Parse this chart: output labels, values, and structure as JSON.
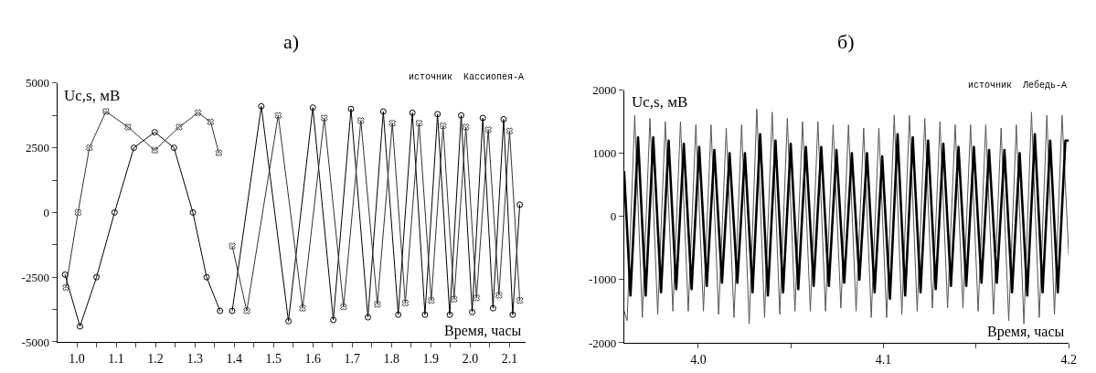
{
  "chart_data": [
    {
      "type": "line",
      "title": "а)",
      "xlabel": "Время, часы",
      "ylabel": "Uc,s, мВ",
      "annotations": [
        "источник  Кассиопея-А"
      ],
      "xlim": [
        0.95,
        2.14
      ],
      "ylim": [
        -5000,
        5000
      ],
      "xticks": [
        {
          "value": 1.0,
          "label": "1.0"
        },
        {
          "value": 1.05,
          "label": null
        },
        {
          "value": 1.1,
          "label": "1.1"
        },
        {
          "value": 1.15,
          "label": null
        },
        {
          "value": 1.2,
          "label": "1.2"
        },
        {
          "value": 1.25,
          "label": null
        },
        {
          "value": 1.3,
          "label": "1.3"
        },
        {
          "value": 1.35,
          "label": null
        },
        {
          "value": 1.4,
          "label": "1.4"
        },
        {
          "value": 1.45,
          "label": null
        },
        {
          "value": 1.5,
          "label": "1.5"
        },
        {
          "value": 1.55,
          "label": null
        },
        {
          "value": 1.6,
          "label": "1.6"
        },
        {
          "value": 1.65,
          "label": null
        },
        {
          "value": 1.7,
          "label": "1.7"
        },
        {
          "value": 1.75,
          "label": null
        },
        {
          "value": 1.8,
          "label": "1.8"
        },
        {
          "value": 1.85,
          "label": null
        },
        {
          "value": 1.9,
          "label": "1.9"
        },
        {
          "value": 1.95,
          "label": null
        },
        {
          "value": 2.0,
          "label": "2.0"
        },
        {
          "value": 2.05,
          "label": null
        },
        {
          "value": 2.1,
          "label": "2.1"
        }
      ],
      "yticks": [
        -5000,
        {
          "value": -3750,
          "label": null
        },
        -2500,
        {
          "value": -1250,
          "label": null
        },
        0,
        {
          "value": 1250,
          "label": null
        },
        2500,
        {
          "value": 3750,
          "label": null
        },
        5000
      ],
      "series": [
        {
          "color": "#000000",
          "marker": "circle",
          "x": [
            0.97,
            1.008,
            1.05,
            1.096,
            1.145,
            1.198,
            1.247,
            1.295,
            1.33,
            1.364,
            1.38,
            1.395,
            1.469,
            1.538,
            1.6,
            1.652,
            1.697,
            1.74,
            1.779,
            1.817,
            1.853,
            1.885,
            1.917,
            1.948,
            1.977,
            2.005,
            2.032,
            2.058,
            2.085,
            2.108,
            2.126
          ],
          "values": [
            -2400,
            -4400,
            -2500,
            0,
            2500,
            3100,
            2500,
            0,
            -2500,
            -3800,
            null,
            -3800,
            4100,
            -4200,
            4050,
            -4150,
            4000,
            -4050,
            3900,
            -3950,
            3850,
            -3950,
            3800,
            -3950,
            3750,
            -3850,
            3650,
            -3700,
            3600,
            -3950,
            300
          ]
        },
        {
          "color": "#333333",
          "marker": "cross",
          "x": [
            0.972,
            1.003,
            1.032,
            1.074,
            1.13,
            1.198,
            1.26,
            1.308,
            1.34,
            1.361,
            1.38,
            1.395,
            1.432,
            1.512,
            1.574,
            1.629,
            1.678,
            1.722,
            1.764,
            1.802,
            1.835,
            1.87,
            1.901,
            1.931,
            1.959,
            1.989,
            2.016,
            2.046,
            2.073,
            2.1,
            2.126
          ],
          "values": [
            -2900,
            0,
            2500,
            3900,
            3300,
            2400,
            3300,
            3850,
            3500,
            2300,
            null,
            -1300,
            -3800,
            3750,
            -3700,
            3650,
            -3650,
            3550,
            -3550,
            3450,
            -3500,
            3450,
            -3400,
            3350,
            -3350,
            3300,
            -3300,
            3200,
            -3200,
            3150,
            -3400
          ]
        }
      ]
    },
    {
      "type": "line",
      "title": "б)",
      "xlabel": "Время, часы",
      "ylabel": "Uc,s, мВ",
      "annotations": [
        "источник  Лебедь-А"
      ],
      "xlim": [
        3.96,
        4.2
      ],
      "ylim": [
        -2000,
        2000
      ],
      "xticks": [
        {
          "value": 4.0,
          "label": "4.0"
        },
        {
          "value": 4.05,
          "label": null
        },
        {
          "value": 4.1,
          "label": "4.1"
        },
        {
          "value": 4.15,
          "label": null
        },
        {
          "value": 4.2,
          "label": "4.2"
        }
      ],
      "yticks": [
        -2000,
        -1000,
        0,
        1000,
        2000
      ],
      "series": [
        {
          "color": "#555555",
          "marker": "none",
          "x": [
            3.96,
            3.9616,
            3.9657,
            3.9698,
            3.9739,
            3.9781,
            3.9822,
            3.9863,
            3.9904,
            3.9946,
            3.9987,
            4.0028,
            4.0069,
            4.011,
            4.0151,
            4.0193,
            4.0234,
            4.0275,
            4.0316,
            4.0358,
            4.0399,
            4.044,
            4.0481,
            4.0522,
            4.0563,
            4.0605,
            4.0646,
            4.0687,
            4.0728,
            4.077,
            4.0811,
            4.0852,
            4.0893,
            4.0934,
            4.0975,
            4.1017,
            4.1058,
            4.1099,
            4.114,
            4.1182,
            4.1223,
            4.1264,
            4.1305,
            4.1346,
            4.1387,
            4.1429,
            4.147,
            4.1511,
            4.1552,
            4.1594,
            4.1635,
            4.1676,
            4.1717,
            4.1758,
            4.1799,
            4.1841,
            4.1882,
            4.1923,
            4.1964,
            4.2
          ],
          "values": [
            -1500,
            -1650,
            1600,
            -1600,
            1550,
            -1550,
            1500,
            -1500,
            1500,
            -1500,
            1450,
            -1500,
            1450,
            -1550,
            1400,
            -1600,
            1450,
            -1700,
            1700,
            -1600,
            1650,
            -1550,
            1550,
            -1500,
            1500,
            -1500,
            1500,
            -1500,
            1450,
            -1450,
            1450,
            -1500,
            1400,
            -1600,
            1400,
            -1600,
            1600,
            -1550,
            1600,
            -1500,
            1550,
            -1450,
            1500,
            -1450,
            1450,
            -1450,
            1450,
            -1500,
            1450,
            -1550,
            1400,
            -1650,
            1450,
            -1700,
            1650,
            -1600,
            1600,
            -1550,
            1600,
            -600
          ]
        },
        {
          "color": "#000000",
          "marker": "none",
          "x": [
            3.96,
            3.9634,
            3.9675,
            3.9716,
            3.9757,
            3.9799,
            3.984,
            3.9881,
            3.9922,
            3.9964,
            4.0005,
            4.0046,
            4.0087,
            4.0128,
            4.0169,
            4.0211,
            4.0252,
            4.0293,
            4.0334,
            4.0376,
            4.0417,
            4.0458,
            4.0499,
            4.054,
            4.0581,
            4.0623,
            4.0664,
            4.0705,
            4.0746,
            4.0788,
            4.0829,
            4.087,
            4.0911,
            4.0952,
            4.0993,
            4.1035,
            4.1076,
            4.1117,
            4.1158,
            4.12,
            4.1241,
            4.1282,
            4.1323,
            4.1364,
            4.1405,
            4.1447,
            4.1488,
            4.1529,
            4.157,
            4.1612,
            4.1653,
            4.1694,
            4.1735,
            4.1776,
            4.1817,
            4.1859,
            4.19,
            4.1941,
            4.1982,
            4.2
          ],
          "values": [
            700,
            -1250,
            1250,
            -1250,
            1250,
            -1200,
            1200,
            -1150,
            1150,
            -1150,
            1100,
            -1100,
            1050,
            -1050,
            1000,
            -1050,
            1000,
            -1200,
            1300,
            -1250,
            1200,
            -1200,
            1150,
            -1150,
            1100,
            -1100,
            1100,
            -1100,
            1050,
            -1050,
            1000,
            -1000,
            1000,
            -1200,
            950,
            -1300,
            1300,
            -1250,
            1250,
            -1200,
            1200,
            -1150,
            1150,
            -1100,
            1100,
            -1100,
            1100,
            -1050,
            1050,
            -1050,
            1050,
            -1200,
            1000,
            -1250,
            1300,
            -1200,
            1200,
            -1200,
            1200,
            1200
          ]
        }
      ]
    }
  ]
}
